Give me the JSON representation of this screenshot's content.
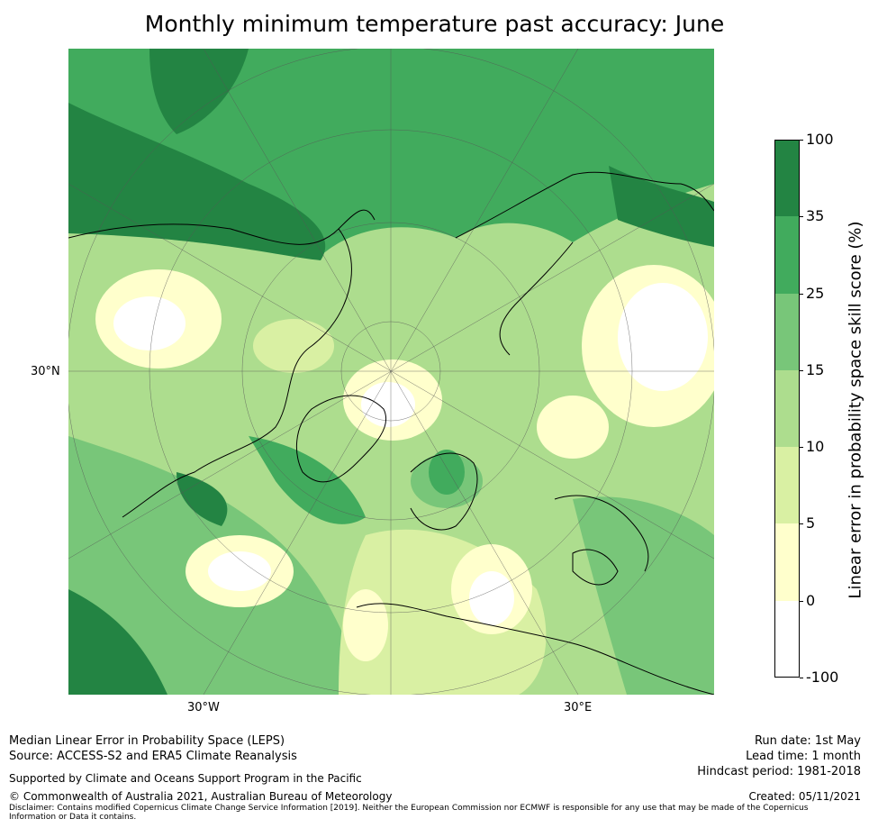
{
  "title": "Monthly minimum temperature past accuracy: June",
  "map": {
    "projection": "north-polar-stereographic",
    "graticule_labels": {
      "latitude": "30°N",
      "lon_west": "30°W",
      "lon_east": "30°E"
    },
    "colors": {
      "ocean_dark": "#238443",
      "mid_green": "#41ab5d",
      "light_green": "#78c679",
      "pale_green": "#addd8e",
      "yellow_green": "#d9f0a3",
      "pale_yellow": "#ffffcc",
      "white": "#ffffff"
    }
  },
  "colorbar": {
    "label": "Linear error in probability space skill score (%)",
    "ticks": [
      "100",
      "35",
      "25",
      "15",
      "10",
      "5",
      "0",
      "-100"
    ],
    "bins": [
      {
        "lower": 35,
        "upper": 100,
        "color": "#238443"
      },
      {
        "lower": 25,
        "upper": 35,
        "color": "#41ab5d"
      },
      {
        "lower": 15,
        "upper": 25,
        "color": "#78c679"
      },
      {
        "lower": 10,
        "upper": 15,
        "color": "#addd8e"
      },
      {
        "lower": 5,
        "upper": 10,
        "color": "#d9f0a3"
      },
      {
        "lower": 0,
        "upper": 5,
        "color": "#ffffcc"
      },
      {
        "lower": -100,
        "upper": 0,
        "color": "#ffffff"
      }
    ]
  },
  "footer": {
    "metric": "Median Linear Error in Probability Space (LEPS)",
    "source": "Source: ACCESS-S2 and ERA5 Climate Reanalysis",
    "support": "Supported by Climate and Oceans Support Program in the Pacific",
    "copyright": "© Commonwealth of Australia 2021, Australian Bureau of Meteorology",
    "disclaimer_line1": "Disclaimer: Contains modified Copernicus Climate Change Service Information [2019]. Neither the European Commission nor ECMWF is responsible for any use that may be made of the Copernicus",
    "disclaimer_line2": "Information or Data it contains.",
    "run_date": "Run date: 1st May",
    "lead_time": "Lead time: 1 month",
    "hindcast": "Hindcast period: 1981-2018",
    "created": "Created: 05/11/2021"
  }
}
